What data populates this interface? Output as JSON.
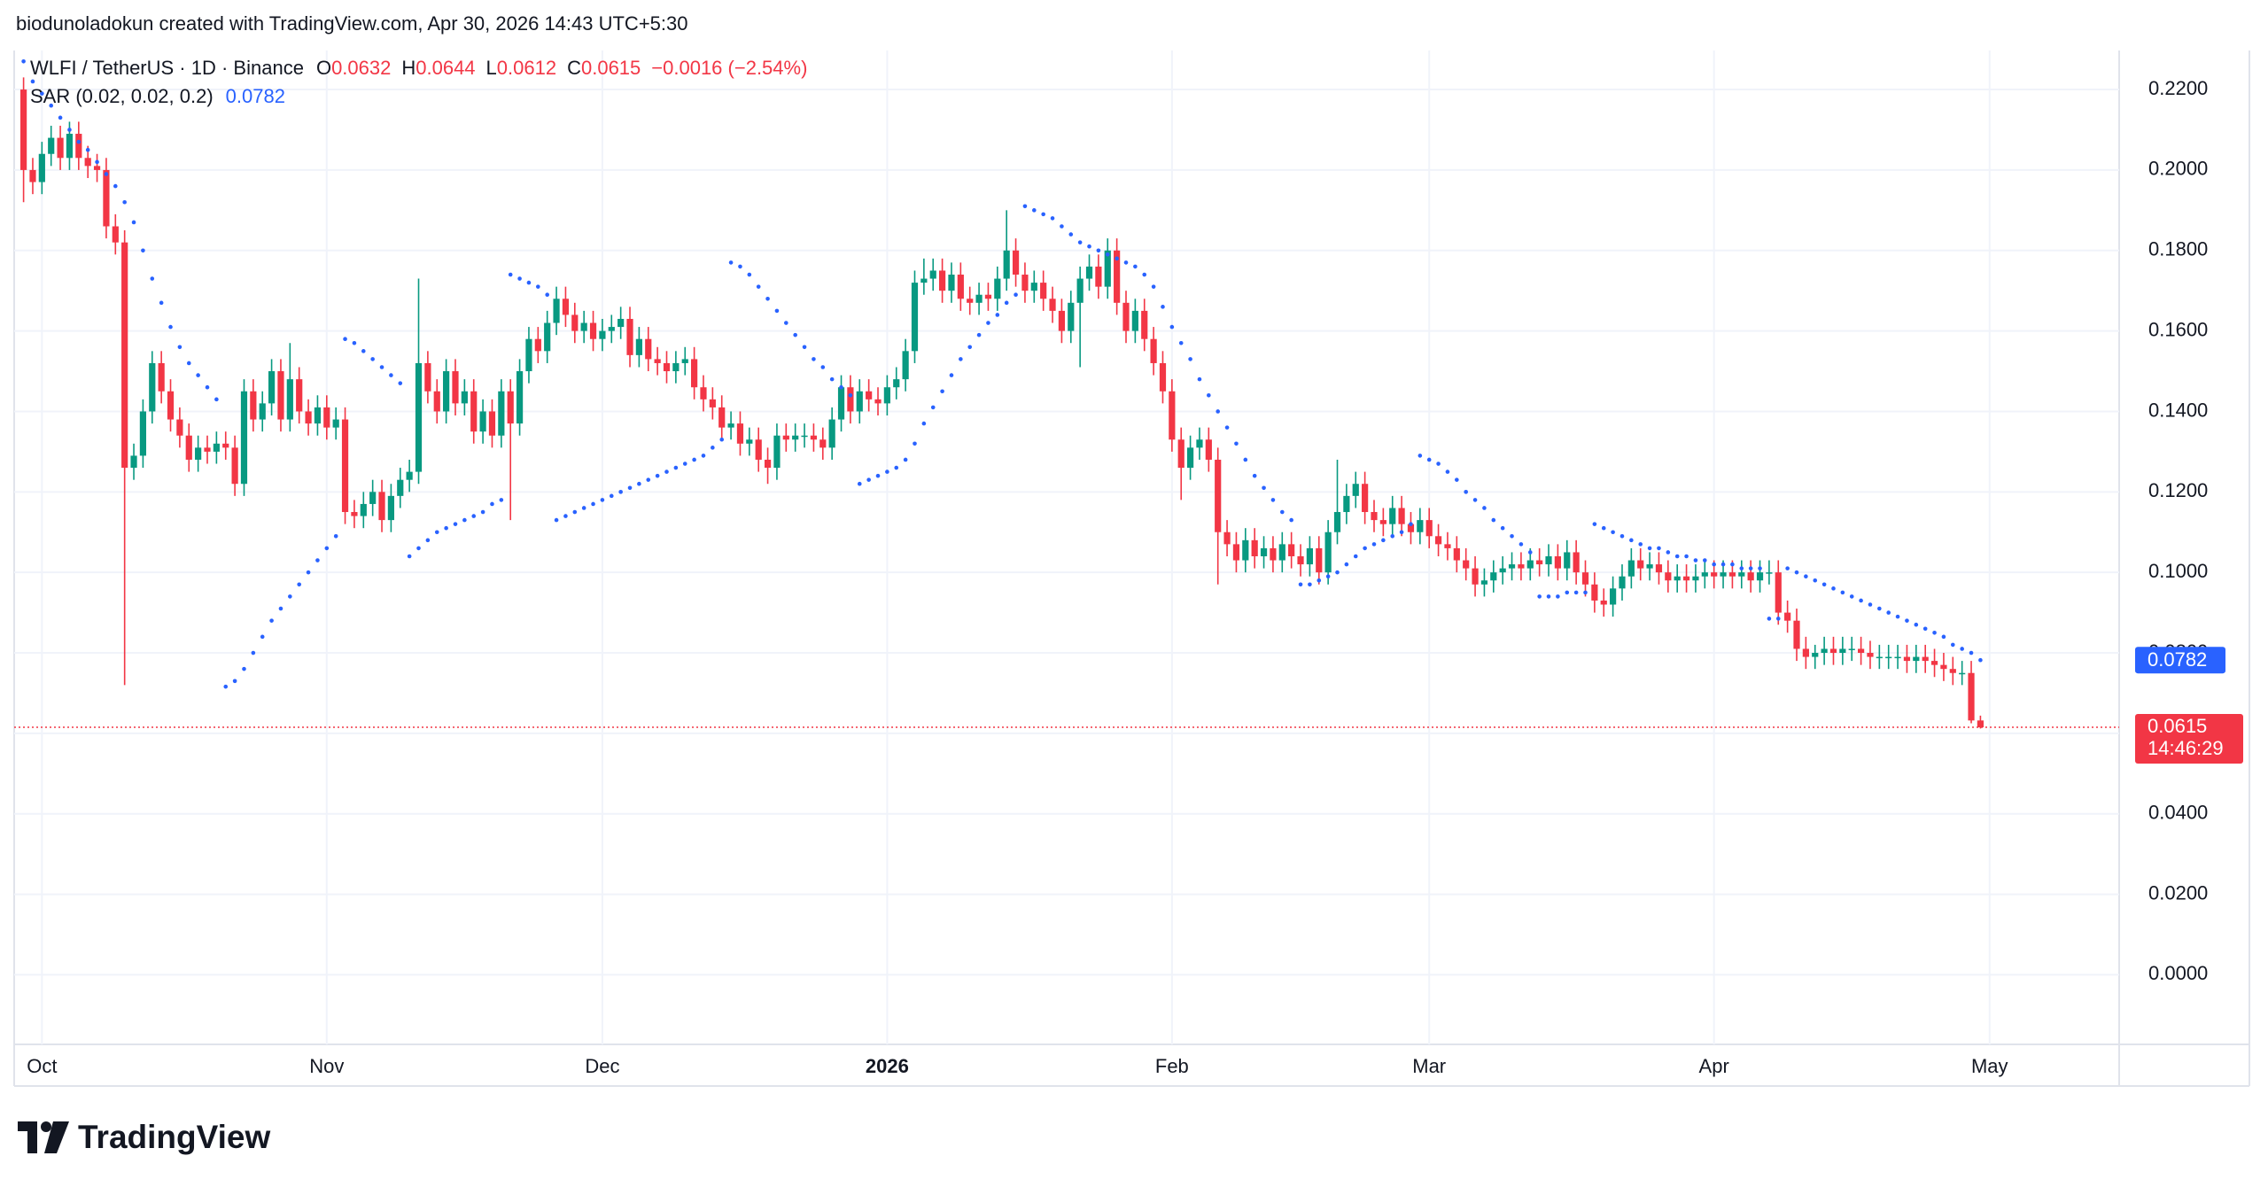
{
  "header": "biodunoladokun created with TradingView.com, Apr 30, 2026 14:43 UTC+5:30",
  "footer": {
    "logo": "TradingView"
  },
  "chart_data": {
    "type": "candlestick",
    "title": "WLFI / TetherUS · 1D · Binance",
    "legend": {
      "labels": [
        "O",
        "H",
        "L",
        "C"
      ],
      "change": "−0.0016 (−2.54%)"
    },
    "countdown": "14:46:29",
    "up_color": "#089981",
    "down_color": "#f23645",
    "grid": true,
    "ylim": [
      -0.0173,
      0.2297
    ],
    "yticks": [
      {
        "value": 0,
        "label": "0.0000"
      },
      {
        "value": 0.02,
        "label": "0.0200"
      },
      {
        "value": 0.04,
        "label": "0.0400"
      },
      {
        "value": 0.06,
        "label": "0.0600"
      },
      {
        "value": 0.08,
        "label": "0.0800"
      },
      {
        "value": 0.1,
        "label": "0.1000"
      },
      {
        "value": 0.12,
        "label": "0.1200"
      },
      {
        "value": 0.14,
        "label": "0.1400"
      },
      {
        "value": 0.16,
        "label": "0.1600"
      },
      {
        "value": 0.18,
        "label": "0.1800"
      },
      {
        "value": 0.2,
        "label": "0.2000"
      },
      {
        "value": 0.22,
        "label": "0.2200"
      }
    ],
    "categories": [
      null,
      null,
      "Oct",
      null,
      null,
      null,
      null,
      null,
      null,
      null,
      null,
      null,
      null,
      null,
      null,
      null,
      null,
      null,
      null,
      null,
      null,
      null,
      null,
      null,
      null,
      null,
      null,
      null,
      null,
      null,
      null,
      null,
      null,
      "Nov",
      null,
      null,
      null,
      null,
      null,
      null,
      null,
      null,
      null,
      null,
      null,
      null,
      null,
      null,
      null,
      null,
      null,
      null,
      null,
      null,
      null,
      null,
      null,
      null,
      null,
      null,
      null,
      null,
      null,
      "Dec",
      null,
      null,
      null,
      null,
      null,
      null,
      null,
      null,
      null,
      null,
      null,
      null,
      null,
      null,
      null,
      null,
      null,
      null,
      null,
      null,
      null,
      null,
      null,
      null,
      null,
      null,
      null,
      null,
      null,
      null,
      "2026",
      null,
      null,
      null,
      null,
      null,
      null,
      null,
      null,
      null,
      null,
      null,
      null,
      null,
      null,
      null,
      null,
      null,
      null,
      null,
      null,
      null,
      null,
      null,
      null,
      null,
      null,
      null,
      null,
      null,
      null,
      "Feb",
      null,
      null,
      null,
      null,
      null,
      null,
      null,
      null,
      null,
      null,
      null,
      null,
      null,
      null,
      null,
      null,
      null,
      null,
      null,
      null,
      null,
      null,
      null,
      null,
      null,
      null,
      null,
      "Mar",
      null,
      null,
      null,
      null,
      null,
      null,
      null,
      null,
      null,
      null,
      null,
      null,
      null,
      null,
      null,
      null,
      null,
      null,
      null,
      null,
      null,
      null,
      null,
      null,
      null,
      null,
      null,
      null,
      null,
      null,
      "Apr",
      null,
      null,
      null,
      null,
      null,
      null,
      null,
      null,
      null,
      null,
      null,
      null,
      null,
      null,
      null,
      null,
      null,
      null,
      null,
      null,
      null,
      null,
      null,
      null,
      null,
      null,
      null,
      null,
      null,
      "May"
    ],
    "open": [
      0.22,
      0.2,
      0.197,
      0.204,
      0.208,
      0.203,
      0.209,
      0.203,
      0.201,
      0.2,
      0.186,
      0.182,
      0.126,
      0.129,
      0.14,
      0.152,
      0.145,
      0.138,
      0.134,
      0.128,
      0.131,
      0.13,
      0.132,
      0.131,
      0.122,
      0.145,
      0.138,
      0.142,
      0.15,
      0.138,
      0.148,
      0.14,
      0.137,
      0.141,
      0.136,
      0.138,
      0.115,
      0.114,
      0.117,
      0.12,
      0.113,
      0.119,
      0.123,
      0.125,
      0.152,
      0.145,
      0.14,
      0.15,
      0.142,
      0.145,
      0.135,
      0.14,
      0.134,
      0.145,
      0.137,
      0.15,
      0.158,
      0.155,
      0.162,
      0.168,
      0.164,
      0.16,
      0.162,
      0.158,
      0.16,
      0.161,
      0.163,
      0.154,
      0.158,
      0.153,
      0.152,
      0.15,
      0.152,
      0.153,
      0.146,
      0.143,
      0.141,
      0.136,
      0.137,
      0.132,
      0.133,
      0.128,
      0.126,
      0.134,
      0.133,
      0.134,
      0.134,
      0.133,
      0.131,
      0.138,
      0.146,
      0.14,
      0.145,
      0.143,
      0.142,
      0.146,
      0.148,
      0.155,
      0.172,
      0.173,
      0.175,
      0.17,
      0.174,
      0.168,
      0.167,
      0.169,
      0.168,
      0.173,
      0.18,
      0.174,
      0.17,
      0.172,
      0.168,
      0.165,
      0.16,
      0.167,
      0.173,
      0.176,
      0.171,
      0.18,
      0.167,
      0.16,
      0.165,
      0.158,
      0.152,
      0.145,
      0.133,
      0.126,
      0.131,
      0.133,
      0.128,
      0.11,
      0.107,
      0.103,
      0.108,
      0.104,
      0.106,
      0.103,
      0.107,
      0.104,
      0.102,
      0.106,
      0.1,
      0.11,
      0.115,
      0.119,
      0.122,
      0.115,
      0.113,
      0.112,
      0.116,
      0.112,
      0.11,
      0.113,
      0.109,
      0.107,
      0.106,
      0.103,
      0.101,
      0.097,
      0.098,
      0.1,
      0.101,
      0.102,
      0.101,
      0.103,
      0.102,
      0.104,
      0.101,
      0.105,
      0.1,
      0.097,
      0.093,
      0.092,
      0.096,
      0.099,
      0.103,
      0.101,
      0.102,
      0.1,
      0.098,
      0.099,
      0.098,
      0.099,
      0.1,
      0.099,
      0.1,
      0.099,
      0.1,
      0.098,
      0.1,
      0.1,
      0.09,
      0.088,
      0.081,
      0.079,
      0.08,
      0.081,
      0.08,
      0.081,
      0.081,
      0.08,
      0.079,
      0.079,
      0.079,
      0.079,
      0.078,
      0.079,
      0.078,
      0.077,
      0.076,
      0.075,
      0.075,
      0.0632,
      null
    ],
    "high": [
      0.223,
      0.203,
      0.207,
      0.211,
      0.211,
      0.212,
      0.212,
      0.206,
      0.204,
      0.203,
      0.189,
      0.185,
      0.132,
      0.143,
      0.155,
      0.155,
      0.148,
      0.141,
      0.137,
      0.134,
      0.134,
      0.135,
      0.135,
      0.134,
      0.148,
      0.148,
      0.145,
      0.153,
      0.153,
      0.157,
      0.151,
      0.143,
      0.144,
      0.144,
      0.141,
      0.141,
      0.118,
      0.12,
      0.123,
      0.123,
      0.122,
      0.126,
      0.128,
      0.173,
      0.155,
      0.148,
      0.153,
      0.153,
      0.148,
      0.148,
      0.143,
      0.143,
      0.148,
      0.148,
      0.153,
      0.161,
      0.161,
      0.165,
      0.171,
      0.171,
      0.167,
      0.165,
      0.165,
      0.163,
      0.164,
      0.166,
      0.166,
      0.161,
      0.161,
      0.156,
      0.155,
      0.155,
      0.156,
      0.156,
      0.149,
      0.146,
      0.144,
      0.14,
      0.14,
      0.136,
      0.136,
      0.131,
      0.137,
      0.137,
      0.137,
      0.137,
      0.137,
      0.136,
      0.141,
      0.149,
      0.149,
      0.148,
      0.148,
      0.146,
      0.149,
      0.151,
      0.158,
      0.175,
      0.178,
      0.178,
      0.178,
      0.177,
      0.177,
      0.171,
      0.172,
      0.172,
      0.176,
      0.19,
      0.183,
      0.177,
      0.175,
      0.175,
      0.171,
      0.168,
      0.17,
      0.176,
      0.179,
      0.179,
      0.183,
      0.183,
      0.17,
      0.168,
      0.168,
      0.161,
      0.155,
      0.148,
      0.136,
      0.134,
      0.136,
      0.136,
      0.131,
      0.113,
      0.11,
      0.111,
      0.111,
      0.109,
      0.109,
      0.11,
      0.11,
      0.107,
      0.109,
      0.109,
      0.113,
      0.128,
      0.122,
      0.125,
      0.125,
      0.118,
      0.116,
      0.119,
      0.119,
      0.115,
      0.116,
      0.116,
      0.112,
      0.11,
      0.109,
      0.106,
      0.104,
      0.101,
      0.103,
      0.104,
      0.105,
      0.105,
      0.106,
      0.106,
      0.107,
      0.107,
      0.108,
      0.108,
      0.103,
      0.1,
      0.096,
      0.099,
      0.102,
      0.106,
      0.106,
      0.105,
      0.105,
      0.103,
      0.102,
      0.102,
      0.102,
      0.103,
      0.103,
      0.103,
      0.103,
      0.103,
      0.103,
      0.103,
      0.103,
      0.103,
      0.093,
      0.091,
      0.084,
      0.082,
      0.084,
      0.084,
      0.084,
      0.084,
      0.084,
      0.083,
      0.082,
      0.082,
      0.082,
      0.082,
      0.082,
      0.082,
      0.081,
      0.08,
      0.079,
      0.078,
      0.078,
      0.0644,
      null
    ],
    "low": [
      0.192,
      0.194,
      0.194,
      0.201,
      0.2,
      0.2,
      0.2,
      0.198,
      0.197,
      0.183,
      0.179,
      0.072,
      0.123,
      0.126,
      0.137,
      0.142,
      0.135,
      0.131,
      0.125,
      0.125,
      0.127,
      0.127,
      0.128,
      0.119,
      0.119,
      0.135,
      0.135,
      0.139,
      0.135,
      0.135,
      0.137,
      0.134,
      0.134,
      0.133,
      0.133,
      0.112,
      0.111,
      0.111,
      0.114,
      0.11,
      0.11,
      0.116,
      0.12,
      0.122,
      0.142,
      0.137,
      0.137,
      0.139,
      0.139,
      0.132,
      0.132,
      0.131,
      0.131,
      0.113,
      0.134,
      0.147,
      0.152,
      0.152,
      0.159,
      0.161,
      0.157,
      0.157,
      0.155,
      0.155,
      0.157,
      0.158,
      0.151,
      0.151,
      0.15,
      0.149,
      0.147,
      0.147,
      0.149,
      0.143,
      0.14,
      0.138,
      0.133,
      0.133,
      0.129,
      0.129,
      0.125,
      0.122,
      0.123,
      0.13,
      0.13,
      0.131,
      0.13,
      0.128,
      0.128,
      0.135,
      0.137,
      0.137,
      0.14,
      0.139,
      0.139,
      0.143,
      0.145,
      0.152,
      0.169,
      0.17,
      0.167,
      0.167,
      0.165,
      0.164,
      0.164,
      0.165,
      0.165,
      0.17,
      0.171,
      0.167,
      0.167,
      0.165,
      0.162,
      0.157,
      0.157,
      0.151,
      0.17,
      0.168,
      0.168,
      0.164,
      0.157,
      0.157,
      0.155,
      0.149,
      0.142,
      0.13,
      0.118,
      0.123,
      0.128,
      0.125,
      0.097,
      0.104,
      0.1,
      0.1,
      0.101,
      0.101,
      0.1,
      0.1,
      0.101,
      0.099,
      0.099,
      0.097,
      0.097,
      0.107,
      0.112,
      0.116,
      0.112,
      0.11,
      0.109,
      0.109,
      0.109,
      0.107,
      0.107,
      0.106,
      0.104,
      0.103,
      0.1,
      0.098,
      0.094,
      0.094,
      0.095,
      0.097,
      0.098,
      0.098,
      0.098,
      0.099,
      0.099,
      0.098,
      0.098,
      0.097,
      0.094,
      0.09,
      0.089,
      0.089,
      0.093,
      0.096,
      0.098,
      0.098,
      0.097,
      0.095,
      0.095,
      0.095,
      0.095,
      0.096,
      0.096,
      0.096,
      0.096,
      0.096,
      0.095,
      0.095,
      0.097,
      0.087,
      0.085,
      0.078,
      0.076,
      0.076,
      0.077,
      0.077,
      0.077,
      0.078,
      0.077,
      0.076,
      0.076,
      0.076,
      0.076,
      0.075,
      0.075,
      0.075,
      0.074,
      0.073,
      0.072,
      0.072,
      0.0625,
      0.0612,
      null
    ],
    "close": [
      0.2,
      0.197,
      0.204,
      0.208,
      0.203,
      0.209,
      0.203,
      0.201,
      0.2,
      0.186,
      0.182,
      0.126,
      0.129,
      0.14,
      0.152,
      0.145,
      0.138,
      0.134,
      0.128,
      0.131,
      0.13,
      0.132,
      0.131,
      0.122,
      0.145,
      0.138,
      0.142,
      0.15,
      0.138,
      0.148,
      0.14,
      0.137,
      0.141,
      0.136,
      0.138,
      0.115,
      0.114,
      0.117,
      0.12,
      0.113,
      0.119,
      0.123,
      0.125,
      0.152,
      0.145,
      0.14,
      0.15,
      0.142,
      0.145,
      0.135,
      0.14,
      0.134,
      0.145,
      0.137,
      0.15,
      0.158,
      0.155,
      0.162,
      0.168,
      0.164,
      0.16,
      0.162,
      0.158,
      0.16,
      0.161,
      0.163,
      0.154,
      0.158,
      0.153,
      0.152,
      0.15,
      0.152,
      0.153,
      0.146,
      0.143,
      0.141,
      0.136,
      0.137,
      0.132,
      0.133,
      0.128,
      0.126,
      0.134,
      0.133,
      0.134,
      0.134,
      0.133,
      0.131,
      0.138,
      0.146,
      0.14,
      0.145,
      0.143,
      0.142,
      0.146,
      0.148,
      0.155,
      0.172,
      0.173,
      0.175,
      0.17,
      0.174,
      0.168,
      0.167,
      0.169,
      0.168,
      0.173,
      0.18,
      0.174,
      0.17,
      0.172,
      0.168,
      0.165,
      0.16,
      0.167,
      0.173,
      0.176,
      0.171,
      0.18,
      0.167,
      0.16,
      0.165,
      0.158,
      0.152,
      0.145,
      0.133,
      0.126,
      0.131,
      0.133,
      0.128,
      0.11,
      0.107,
      0.103,
      0.108,
      0.104,
      0.106,
      0.103,
      0.107,
      0.104,
      0.102,
      0.106,
      0.1,
      0.11,
      0.115,
      0.119,
      0.122,
      0.115,
      0.113,
      0.112,
      0.116,
      0.112,
      0.11,
      0.113,
      0.109,
      0.107,
      0.106,
      0.103,
      0.101,
      0.097,
      0.098,
      0.1,
      0.101,
      0.102,
      0.101,
      0.103,
      0.102,
      0.104,
      0.101,
      0.105,
      0.1,
      0.097,
      0.093,
      0.092,
      0.096,
      0.099,
      0.103,
      0.101,
      0.102,
      0.1,
      0.098,
      0.099,
      0.098,
      0.099,
      0.1,
      0.099,
      0.1,
      0.099,
      0.1,
      0.098,
      0.1,
      0.1,
      0.09,
      0.088,
      0.081,
      0.079,
      0.08,
      0.081,
      0.08,
      0.081,
      0.081,
      0.08,
      0.079,
      0.079,
      0.079,
      0.079,
      0.078,
      0.079,
      0.078,
      0.077,
      0.076,
      0.075,
      0.075,
      0.0632,
      0.0615,
      null
    ],
    "indicator": {
      "name": "SAR (0.02, 0.02, 0.2)",
      "color": "#2962ff",
      "values": [
        0.227,
        0.222,
        0.219,
        0.216,
        0.213,
        0.21,
        0.207,
        0.205,
        0.202,
        0.199,
        0.196,
        0.192,
        0.187,
        0.18,
        0.173,
        0.167,
        0.161,
        0.156,
        0.152,
        0.149,
        0.146,
        0.143,
        0.0716,
        0.073,
        0.076,
        0.08,
        0.084,
        0.088,
        0.091,
        0.094,
        0.097,
        0.1,
        0.103,
        0.106,
        0.109,
        0.158,
        0.157,
        0.155,
        0.153,
        0.151,
        0.149,
        0.147,
        0.104,
        0.106,
        0.108,
        0.11,
        0.111,
        0.112,
        0.113,
        0.114,
        0.115,
        0.117,
        0.118,
        0.174,
        0.173,
        0.172,
        0.171,
        0.169,
        0.113,
        0.114,
        0.115,
        0.116,
        0.117,
        0.118,
        0.119,
        0.12,
        0.121,
        0.122,
        0.123,
        0.124,
        0.125,
        0.126,
        0.127,
        0.128,
        0.129,
        0.131,
        0.133,
        0.177,
        0.176,
        0.174,
        0.171,
        0.168,
        0.165,
        0.162,
        0.159,
        0.156,
        0.153,
        0.151,
        0.148,
        0.146,
        0.144,
        0.122,
        0.123,
        0.124,
        0.125,
        0.126,
        0.128,
        0.132,
        0.137,
        0.141,
        0.145,
        0.149,
        0.153,
        0.156,
        0.159,
        0.162,
        0.164,
        0.167,
        0.169,
        0.191,
        0.19,
        0.189,
        0.188,
        0.186,
        0.184,
        0.182,
        0.181,
        0.18,
        0.179,
        0.178,
        0.177,
        0.176,
        0.174,
        0.171,
        0.166,
        0.161,
        0.157,
        0.153,
        0.148,
        0.144,
        0.14,
        0.136,
        0.132,
        0.128,
        0.124,
        0.121,
        0.118,
        0.115,
        0.113,
        0.097,
        0.097,
        0.098,
        0.099,
        0.1,
        0.102,
        0.104,
        0.106,
        0.107,
        0.108,
        0.109,
        0.11,
        0.112,
        0.129,
        0.128,
        0.127,
        0.125,
        0.123,
        0.12,
        0.118,
        0.116,
        0.113,
        0.111,
        0.109,
        0.107,
        0.105,
        0.094,
        0.094,
        0.094,
        0.095,
        0.095,
        0.095,
        0.112,
        0.111,
        0.11,
        0.109,
        0.108,
        0.107,
        0.106,
        0.106,
        0.105,
        0.104,
        0.104,
        0.103,
        0.103,
        0.102,
        0.102,
        0.102,
        0.101,
        0.101,
        0.101,
        0.0885,
        0.0885,
        0.101,
        0.1,
        0.099,
        0.098,
        0.097,
        0.096,
        0.095,
        0.094,
        0.093,
        0.092,
        0.091,
        0.09,
        0.089,
        0.088,
        0.087,
        0.086,
        0.085,
        0.084,
        0.082,
        0.081,
        0.08,
        0.0782,
        null
      ]
    }
  }
}
